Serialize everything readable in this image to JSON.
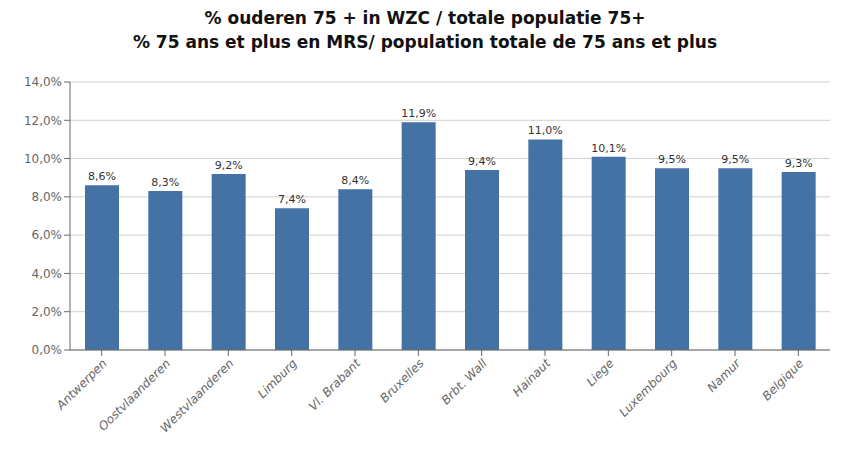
{
  "chart_data": {
    "type": "bar",
    "title": "% ouderen 75 + in WZC / totale populatie 75+",
    "subtitle": "% 75 ans et plus en MRS/ population totale de 75 ans et plus",
    "categories": [
      "Antwerpen",
      "Oostvlaanderen",
      "Westvlaanderen",
      "Limburg",
      "Vl. Brabant",
      "Bruxelles",
      "Brbt. Wall",
      "Hainaut",
      "Liege",
      "Luxembourg",
      "Namur",
      "Belgique"
    ],
    "values": [
      8.6,
      8.3,
      9.2,
      7.4,
      8.4,
      11.9,
      9.4,
      11.0,
      10.1,
      9.5,
      9.5,
      9.3
    ],
    "value_labels": [
      "8,6%",
      "8,3%",
      "9,2%",
      "7,4%",
      "8,4%",
      "11,9%",
      "9,4%",
      "11,0%",
      "10,1%",
      "9,5%",
      "9,5%",
      "9,3%"
    ],
    "data_labels": true,
    "color": "#4472A4",
    "ylim": [
      0,
      14
    ],
    "yticks": [
      {
        "value": 0,
        "label": "0,0%"
      },
      {
        "value": 2,
        "label": "2,0%"
      },
      {
        "value": 4,
        "label": "4,0%"
      },
      {
        "value": 6,
        "label": "6,0%"
      },
      {
        "value": 8,
        "label": "8,0%"
      },
      {
        "value": 10,
        "label": "10,0%"
      },
      {
        "value": 12,
        "label": "12,0%"
      },
      {
        "value": 14,
        "label": "14,0%"
      }
    ],
    "grid": true
  }
}
